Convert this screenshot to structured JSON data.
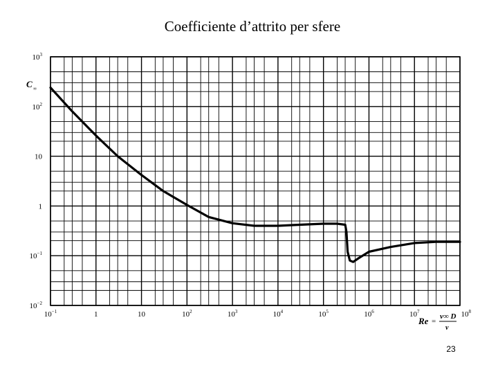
{
  "slide": {
    "title": "Coefficiente d’attrito per sfere",
    "page_number": "23"
  },
  "chart_data": {
    "type": "line",
    "title": "",
    "xlabel": "Re",
    "xlabel_formula": {
      "numerator": "v∞ D",
      "denominator": "ν"
    },
    "ylabel": "C",
    "ylabel_subscript": "∞",
    "x_scale": "log",
    "y_scale": "log",
    "xlim": [
      0.1,
      100000000
    ],
    "ylim": [
      0.01,
      1000
    ],
    "grid": true,
    "x_ticks": [
      {
        "value": 0.1,
        "base": "10",
        "exp": "−1"
      },
      {
        "value": 1,
        "base": "1",
        "exp": ""
      },
      {
        "value": 10,
        "base": "10",
        "exp": ""
      },
      {
        "value": 100,
        "base": "10",
        "exp": "2"
      },
      {
        "value": 1000,
        "base": "10",
        "exp": "3"
      },
      {
        "value": 10000,
        "base": "10",
        "exp": "4"
      },
      {
        "value": 100000,
        "base": "10",
        "exp": "5"
      },
      {
        "value": 1000000,
        "base": "10",
        "exp": "6"
      },
      {
        "value": 10000000,
        "base": "10",
        "exp": "7"
      },
      {
        "value": 100000000,
        "base": "10",
        "exp": "8"
      }
    ],
    "y_ticks": [
      {
        "value": 0.01,
        "base": "10",
        "exp": "−2"
      },
      {
        "value": 0.1,
        "base": "10",
        "exp": "−1"
      },
      {
        "value": 1,
        "base": "1",
        "exp": ""
      },
      {
        "value": 10,
        "base": "10",
        "exp": ""
      },
      {
        "value": 100,
        "base": "10",
        "exp": "2"
      },
      {
        "value": 1000,
        "base": "10",
        "exp": "3"
      }
    ],
    "series": [
      {
        "color": "#000000",
        "points": [
          [
            0.1,
            240
          ],
          [
            0.3,
            80
          ],
          [
            1,
            26
          ],
          [
            3,
            10
          ],
          [
            10,
            4.2
          ],
          [
            30,
            2
          ],
          [
            100,
            1.05
          ],
          [
            300,
            0.6
          ],
          [
            1000,
            0.45
          ],
          [
            3000,
            0.4
          ],
          [
            10000,
            0.4
          ],
          [
            30000,
            0.42
          ],
          [
            100000,
            0.44
          ],
          [
            200000,
            0.44
          ],
          [
            300000,
            0.42
          ],
          [
            320000,
            0.3
          ],
          [
            340000,
            0.12
          ],
          [
            380000,
            0.08
          ],
          [
            450000,
            0.075
          ],
          [
            600000,
            0.09
          ],
          [
            1000000,
            0.12
          ],
          [
            3000000,
            0.15
          ],
          [
            10000000,
            0.18
          ],
          [
            30000000,
            0.19
          ],
          [
            100000000,
            0.19
          ]
        ]
      }
    ]
  }
}
